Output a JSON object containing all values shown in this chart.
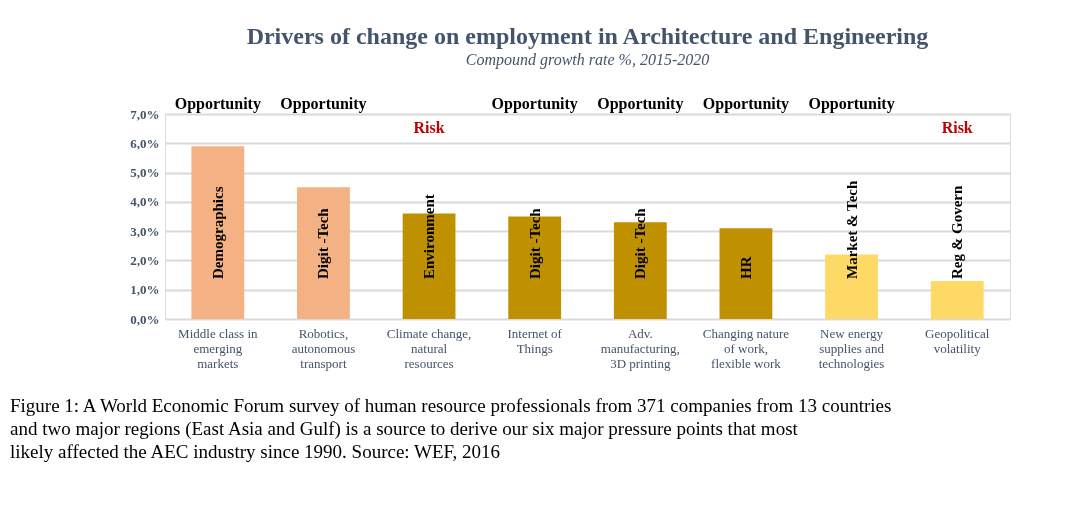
{
  "chart_data": {
    "type": "bar",
    "title": "Drivers of change on employment in Architecture and Engineering",
    "subtitle": "Compound growth rate %, 2015-2020",
    "categories": [
      "Middle class in emerging markets",
      "Robotics, autonomous transport",
      "Climate change, natural resources",
      "Internet of Things",
      "Adv. manufacturing, 3D printing",
      "Changing nature of work, flexible work",
      "New energy supplies and technologies",
      "Geopolitical volatility"
    ],
    "values": [
      5.9,
      4.5,
      3.6,
      3.5,
      3.3,
      3.1,
      2.2,
      1.3
    ],
    "colors": [
      "#f4b183",
      "#f4b183",
      "#bf9000",
      "#bf9000",
      "#bf9000",
      "#bf9000",
      "#ffd966",
      "#ffd966"
    ],
    "ylim": [
      0,
      7
    ],
    "yticks": [
      {
        "value": 0,
        "label": "0,0%"
      },
      {
        "value": 1,
        "label": "1,0%"
      },
      {
        "value": 2,
        "label": "2,0%"
      },
      {
        "value": 3,
        "label": "3,0%"
      },
      {
        "value": 4,
        "label": "4,0%"
      },
      {
        "value": 5,
        "label": "5,0%"
      },
      {
        "value": 6,
        "label": "6,0%"
      },
      {
        "value": 7,
        "label": "7,0%"
      }
    ],
    "grid": "y",
    "annotations": [
      "Opportunity",
      "Opportunity",
      "Risk",
      "Opportunity",
      "Opportunity",
      "Opportunity",
      "Opportunity",
      "Risk",
      "Demographics",
      "Digit -Tech",
      "Environment",
      "Digit -Tech",
      "Digit -Tech",
      "HR",
      "Market & Tech",
      "Reg & Govern",
      "Figure 1: A World Economic Forum survey of human resource professionals from 371 companies from 13 countries and two major regions (East Asia and Gulf) is a source to derive our six major pressure points that most likely affected the AEC industry since 1990. Source: WEF, 2016"
    ]
  }
}
